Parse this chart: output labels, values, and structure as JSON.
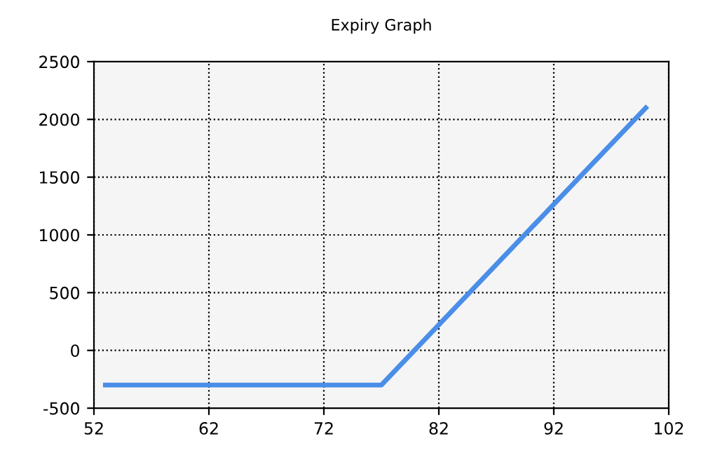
{
  "chart_data": {
    "type": "line",
    "title": "Expiry Graph",
    "series": [
      {
        "color": "#4a8ee8",
        "x": [
          53,
          77,
          100
        ],
        "values": [
          -300,
          -300,
          2100
        ]
      }
    ],
    "xlim": [
      52,
      102
    ],
    "xticks": [
      52,
      62,
      72,
      82,
      92,
      102
    ],
    "ylim": [
      -500,
      2500
    ],
    "yticks": [
      -500,
      0,
      500,
      1000,
      1500,
      2000,
      2500
    ],
    "grid": true,
    "line_style": "solid",
    "marker": "none",
    "legend": false
  }
}
